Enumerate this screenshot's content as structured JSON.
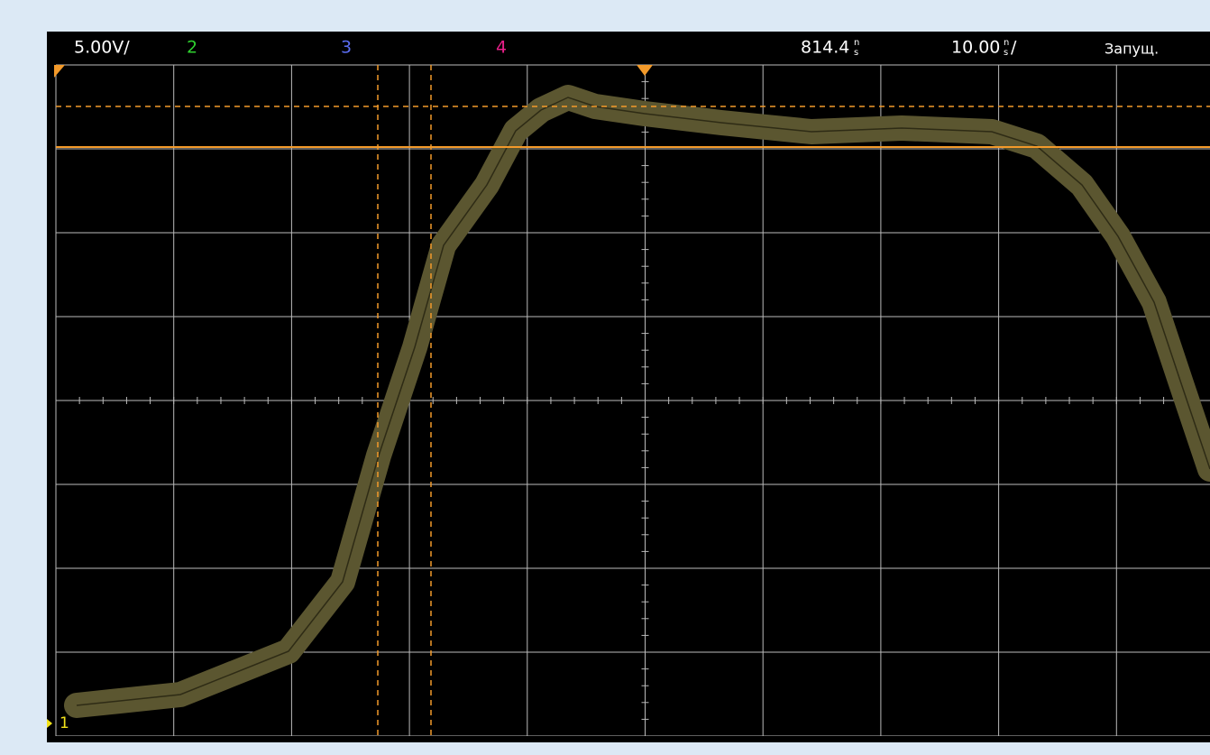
{
  "header": {
    "volts_per_div": "5.00V/",
    "channel_2": "2",
    "channel_3": "3",
    "channel_4": "4",
    "time_offset": "814.4",
    "time_offset_unit_top": "n",
    "time_offset_unit_bottom": "s",
    "time_per_div": "10.00",
    "time_per_div_unit_top": "n",
    "time_per_div_unit_bottom": "s",
    "time_per_div_suffix": "/",
    "status": "Запущ."
  },
  "channel_marker": "1"
}
